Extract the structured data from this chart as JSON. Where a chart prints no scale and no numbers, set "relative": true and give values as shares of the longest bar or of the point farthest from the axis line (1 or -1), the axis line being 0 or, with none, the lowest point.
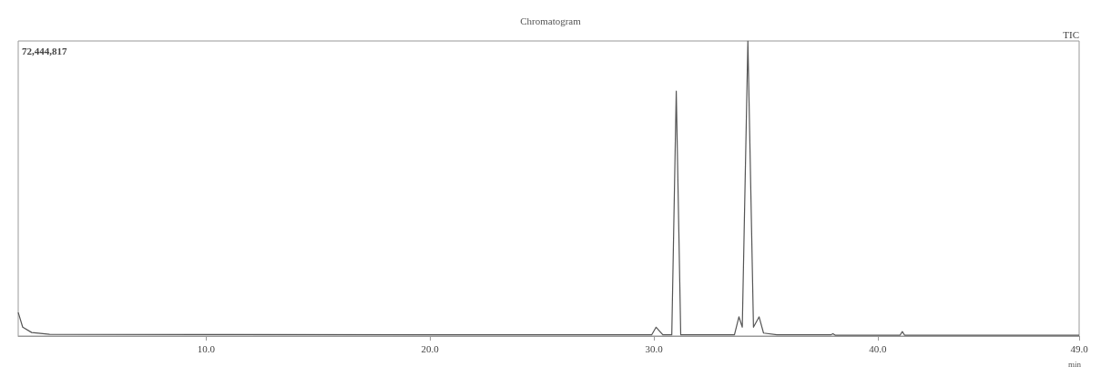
{
  "chart_data": {
    "type": "line",
    "title": "Chromatogram",
    "xlabel": "min",
    "relative": true,
    "color": "#555555",
    "x": [
      1.6,
      1.8,
      2.2,
      3,
      10,
      20,
      29.9,
      30.1,
      30.4,
      30.8,
      31.0,
      31.2,
      33.6,
      33.8,
      33.95,
      34.2,
      34.45,
      34.7,
      34.9,
      35.5,
      37.9,
      38.0,
      38.1,
      41.0,
      41.1,
      41.2,
      49
    ],
    "values": [
      0.08,
      0.03,
      0.012,
      0.006,
      0.005,
      0.004,
      0.004,
      0.03,
      0.004,
      0.004,
      0.83,
      0.004,
      0.004,
      0.065,
      0.03,
      1.0,
      0.03,
      0.065,
      0.01,
      0.004,
      0.004,
      0.008,
      0.003,
      0.003,
      0.015,
      0.003,
      0.003
    ],
    "xlim": [
      1.6,
      49
    ],
    "xticks": [
      {
        "value": 10,
        "label": "10.0"
      },
      {
        "value": 20,
        "label": "20.0"
      },
      {
        "value": 30,
        "label": "30.0"
      },
      {
        "value": 40,
        "label": "40.0"
      },
      {
        "value": 49,
        "label": "49.0"
      }
    ],
    "annotations": [
      "72,444,817",
      "TIC"
    ],
    "grid": false,
    "legend": false,
    "marker": "none",
    "line_style": "solid"
  }
}
